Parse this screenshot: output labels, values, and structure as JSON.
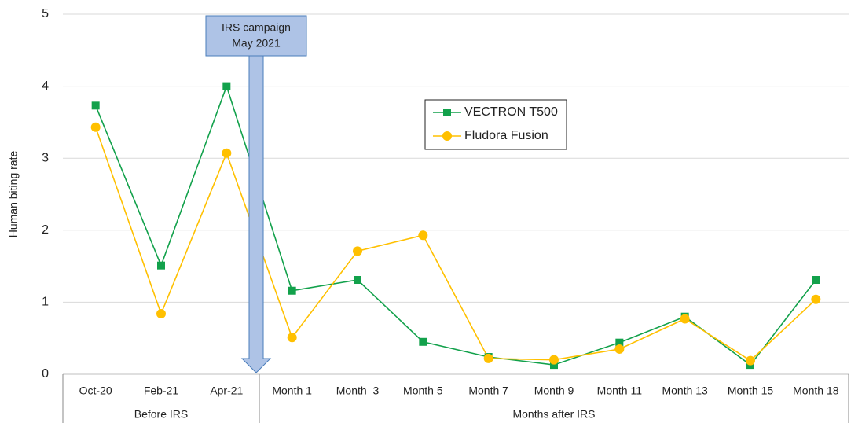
{
  "chart_data": {
    "type": "line",
    "y_label": "Human biting rate",
    "categories": [
      "Oct-20",
      "Feb-21",
      "Apr-21",
      "Month 1",
      "Month  3",
      "Month 5",
      "Month 7",
      "Month 9",
      "Month 11",
      "Month 13",
      "Month 15",
      "Month 18"
    ],
    "groups": [
      "Before IRS",
      "Months after IRS"
    ],
    "annotation": [
      "IRS campaign",
      "May 2021"
    ],
    "series": [
      {
        "name": "VECTRON T500",
        "color": "#12a14b",
        "marker": "square",
        "values": [
          3.73,
          1.51,
          4.0,
          1.16,
          1.31,
          0.45,
          0.24,
          0.13,
          0.44,
          0.8,
          0.13,
          1.31
        ]
      },
      {
        "name": "Fludora Fusion",
        "color": "#ffc000",
        "marker": "circle",
        "values": [
          3.43,
          0.84,
          3.07,
          0.51,
          1.71,
          1.93,
          0.22,
          0.2,
          0.35,
          0.77,
          0.19,
          1.04
        ]
      }
    ],
    "ylim": [
      0,
      5
    ],
    "yticks": [
      0,
      1,
      2,
      3,
      4,
      5
    ],
    "grid": true,
    "legend": "upper center"
  }
}
